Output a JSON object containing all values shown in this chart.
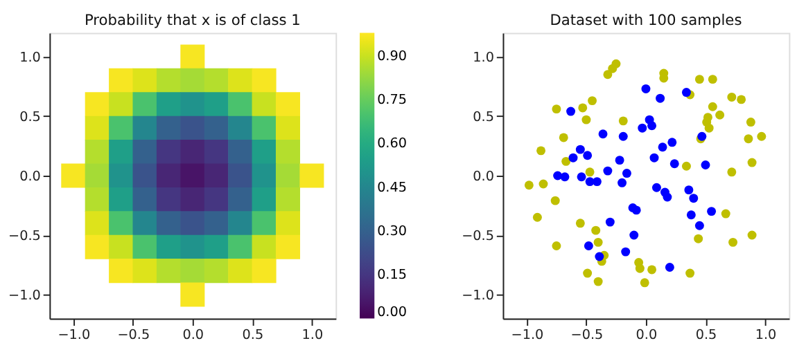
{
  "chart_data": [
    {
      "type": "scatter",
      "title": "Probability that x is of class 1",
      "marker": "square",
      "x": [
        0,
        -0.6,
        -0.4,
        -0.2,
        0,
        0.2,
        0.4,
        0.6,
        -0.8,
        -0.6,
        -0.4,
        -0.2,
        0,
        0.2,
        0.4,
        0.6,
        0.8,
        -0.8,
        -0.6,
        -0.4,
        -0.2,
        0,
        0.2,
        0.4,
        0.6,
        0.8,
        -0.8,
        -0.6,
        -0.4,
        -0.2,
        0,
        0.2,
        0.4,
        0.6,
        0.8,
        -1,
        -0.8,
        -0.6,
        -0.4,
        -0.2,
        0,
        0.2,
        0.4,
        0.6,
        0.8,
        1,
        -0.8,
        -0.6,
        -0.4,
        -0.2,
        0,
        0.2,
        0.4,
        0.6,
        0.8,
        -0.8,
        -0.6,
        -0.4,
        -0.2,
        0,
        0.2,
        0.4,
        0.6,
        0.8,
        -0.8,
        -0.6,
        -0.4,
        -0.2,
        0,
        0.2,
        0.4,
        0.6,
        0.8,
        -0.6,
        -0.4,
        -0.2,
        0,
        0.2,
        0.4,
        0.6,
        0
      ],
      "values": [
        1,
        0.8,
        0.8,
        0.8,
        0.8,
        0.8,
        0.8,
        0.8,
        0.6,
        0.6,
        0.6,
        0.6,
        0.6,
        0.6,
        0.6,
        0.6,
        0.6,
        0.4,
        0.4,
        0.4,
        0.4,
        0.4,
        0.4,
        0.4,
        0.4,
        0.4,
        0.2,
        0.2,
        0.2,
        0.2,
        0.2,
        0.2,
        0.2,
        0.2,
        0.2,
        0,
        0,
        0,
        0,
        0,
        0,
        0,
        0,
        0,
        0,
        0,
        -0.2,
        -0.2,
        -0.2,
        -0.2,
        -0.2,
        -0.2,
        -0.2,
        -0.2,
        -0.2,
        -0.4,
        -0.4,
        -0.4,
        -0.4,
        -0.4,
        -0.4,
        -0.4,
        -0.4,
        -0.4,
        -0.6,
        -0.6,
        -0.6,
        -0.6,
        -0.6,
        -0.6,
        -0.6,
        -0.6,
        -0.6,
        -0.8,
        -0.8,
        -0.8,
        -0.8,
        -0.8,
        -0.8,
        -0.8,
        -1
      ],
      "cvalues": [
        0.97,
        0.97,
        0.93,
        0.87,
        0.85,
        0.87,
        0.93,
        0.97,
        0.97,
        0.9,
        0.7,
        0.55,
        0.5,
        0.55,
        0.7,
        0.9,
        0.97,
        0.93,
        0.7,
        0.45,
        0.3,
        0.25,
        0.3,
        0.45,
        0.7,
        0.93,
        0.87,
        0.55,
        0.3,
        0.15,
        0.1,
        0.15,
        0.3,
        0.55,
        0.87,
        0.97,
        0.85,
        0.5,
        0.25,
        0.1,
        0.05,
        0.1,
        0.25,
        0.5,
        0.85,
        0.97,
        0.87,
        0.55,
        0.3,
        0.15,
        0.1,
        0.15,
        0.3,
        0.55,
        0.87,
        0.93,
        0.7,
        0.45,
        0.3,
        0.25,
        0.3,
        0.45,
        0.7,
        0.93,
        0.97,
        0.9,
        0.7,
        0.55,
        0.5,
        0.55,
        0.7,
        0.9,
        0.97,
        0.97,
        0.93,
        0.87,
        0.85,
        0.87,
        0.93,
        0.97,
        0.97
      ],
      "clim": [
        0,
        0.98
      ],
      "cticks": [
        {
          "value": 0,
          "label": "0.00"
        },
        {
          "value": 0.15,
          "label": "0.15"
        },
        {
          "value": 0.3,
          "label": "0.30"
        },
        {
          "value": 0.45,
          "label": "0.45"
        },
        {
          "value": 0.6,
          "label": "0.60"
        },
        {
          "value": 0.75,
          "label": "0.75"
        },
        {
          "value": 0.9,
          "label": "0.90"
        }
      ],
      "xlim": [
        -1.2,
        1.2
      ],
      "ylim": [
        -1.2,
        1.2
      ],
      "xticks": [
        {
          "value": -1,
          "label": "−1.0"
        },
        {
          "value": -0.5,
          "label": "−0.5"
        },
        {
          "value": 0,
          "label": "0.0"
        },
        {
          "value": 0.5,
          "label": "0.5"
        },
        {
          "value": 1,
          "label": "1.0"
        }
      ],
      "yticks": [
        {
          "value": -1,
          "label": "−1.0"
        },
        {
          "value": -0.5,
          "label": "−0.5"
        },
        {
          "value": 0,
          "label": "0.0"
        },
        {
          "value": 0.5,
          "label": "0.5"
        },
        {
          "value": 1,
          "label": "1.0"
        }
      ],
      "grid": false
    },
    {
      "type": "scatter",
      "title": "Dataset with 100 samples",
      "marker": "circle",
      "series": [
        {
          "color": "#bfbf00",
          "x": [
            -0.25,
            -0.28,
            -0.32,
            0.15,
            0.15,
            0.45,
            0.56,
            0.37,
            0.72,
            0.8,
            -0.45,
            -0.75,
            -0.53,
            0.56,
            -0.5,
            -0.19,
            0.62,
            0.52,
            0.51,
            0.53,
            0.88,
            -0.69,
            0.46,
            0.86,
            0.97,
            -0.88,
            -0.67,
            0.89,
            0.34,
            -0.47,
            0.72,
            -0.98,
            -0.86,
            -0.76,
            -0.91,
            0.67,
            -0.55,
            -0.42,
            -0.75,
            -0.4,
            0.44,
            0.73,
            0.89,
            -0.35,
            -0.37,
            -0.06,
            -0.05,
            0.05,
            -0.49,
            0.37,
            -0.4,
            -0.01
          ],
          "values": [
            0.94,
            0.9,
            0.85,
            0.86,
            0.82,
            0.81,
            0.81,
            0.68,
            0.66,
            0.64,
            0.63,
            0.56,
            0.57,
            0.58,
            0.47,
            0.46,
            0.51,
            0.49,
            0.45,
            0.4,
            0.45,
            0.32,
            0.31,
            0.31,
            0.33,
            0.21,
            0.12,
            0.11,
            0.08,
            0.03,
            0.03,
            -0.08,
            -0.07,
            -0.21,
            -0.35,
            -0.32,
            -0.4,
            -0.46,
            -0.59,
            -0.56,
            -0.53,
            -0.56,
            -0.5,
            -0.67,
            -0.72,
            -0.73,
            -0.78,
            -0.79,
            -0.82,
            -0.82,
            -0.89,
            -0.9
          ]
        },
        {
          "color": "#0000ff",
          "x": [
            0.0,
            0.12,
            0.34,
            -0.63,
            0.03,
            0.05,
            -0.03,
            -0.36,
            -0.19,
            0.47,
            -0.55,
            -0.49,
            -0.61,
            0.22,
            0.14,
            0.07,
            -0.22,
            0.24,
            0.5,
            -0.32,
            -0.16,
            -0.74,
            -0.68,
            -0.54,
            -0.47,
            -0.41,
            -0.2,
            0.09,
            0.16,
            0.18,
            0.36,
            0.4,
            -0.11,
            -0.08,
            0.38,
            0.55,
            -0.3,
            0.45,
            -0.1,
            -0.48,
            -0.17,
            -0.39,
            0.2
          ],
          "values": [
            0.73,
            0.65,
            0.7,
            0.54,
            0.47,
            0.42,
            0.4,
            0.35,
            0.33,
            0.33,
            0.22,
            0.17,
            0.15,
            0.28,
            0.24,
            0.15,
            0.13,
            0.1,
            0.09,
            0.04,
            0.02,
            0.0,
            -0.01,
            -0.01,
            -0.05,
            -0.05,
            -0.06,
            -0.1,
            -0.14,
            -0.18,
            -0.12,
            -0.19,
            -0.27,
            -0.29,
            -0.33,
            -0.3,
            -0.39,
            -0.42,
            -0.5,
            -0.59,
            -0.64,
            -0.68,
            -0.77
          ]
        }
      ],
      "xlim": [
        -1.2,
        1.2
      ],
      "ylim": [
        -1.2,
        1.2
      ],
      "xticks": [
        {
          "value": -1,
          "label": "−1.0"
        },
        {
          "value": -0.5,
          "label": "−0.5"
        },
        {
          "value": 0,
          "label": "0.0"
        },
        {
          "value": 0.5,
          "label": "0.5"
        },
        {
          "value": 1,
          "label": "1.0"
        }
      ],
      "yticks": [
        {
          "value": -1,
          "label": "−1.0"
        },
        {
          "value": -0.5,
          "label": "−0.5"
        },
        {
          "value": 0,
          "label": "0.0"
        },
        {
          "value": 0.5,
          "label": "0.5"
        },
        {
          "value": 1,
          "label": "1.0"
        }
      ],
      "grid": false
    }
  ]
}
